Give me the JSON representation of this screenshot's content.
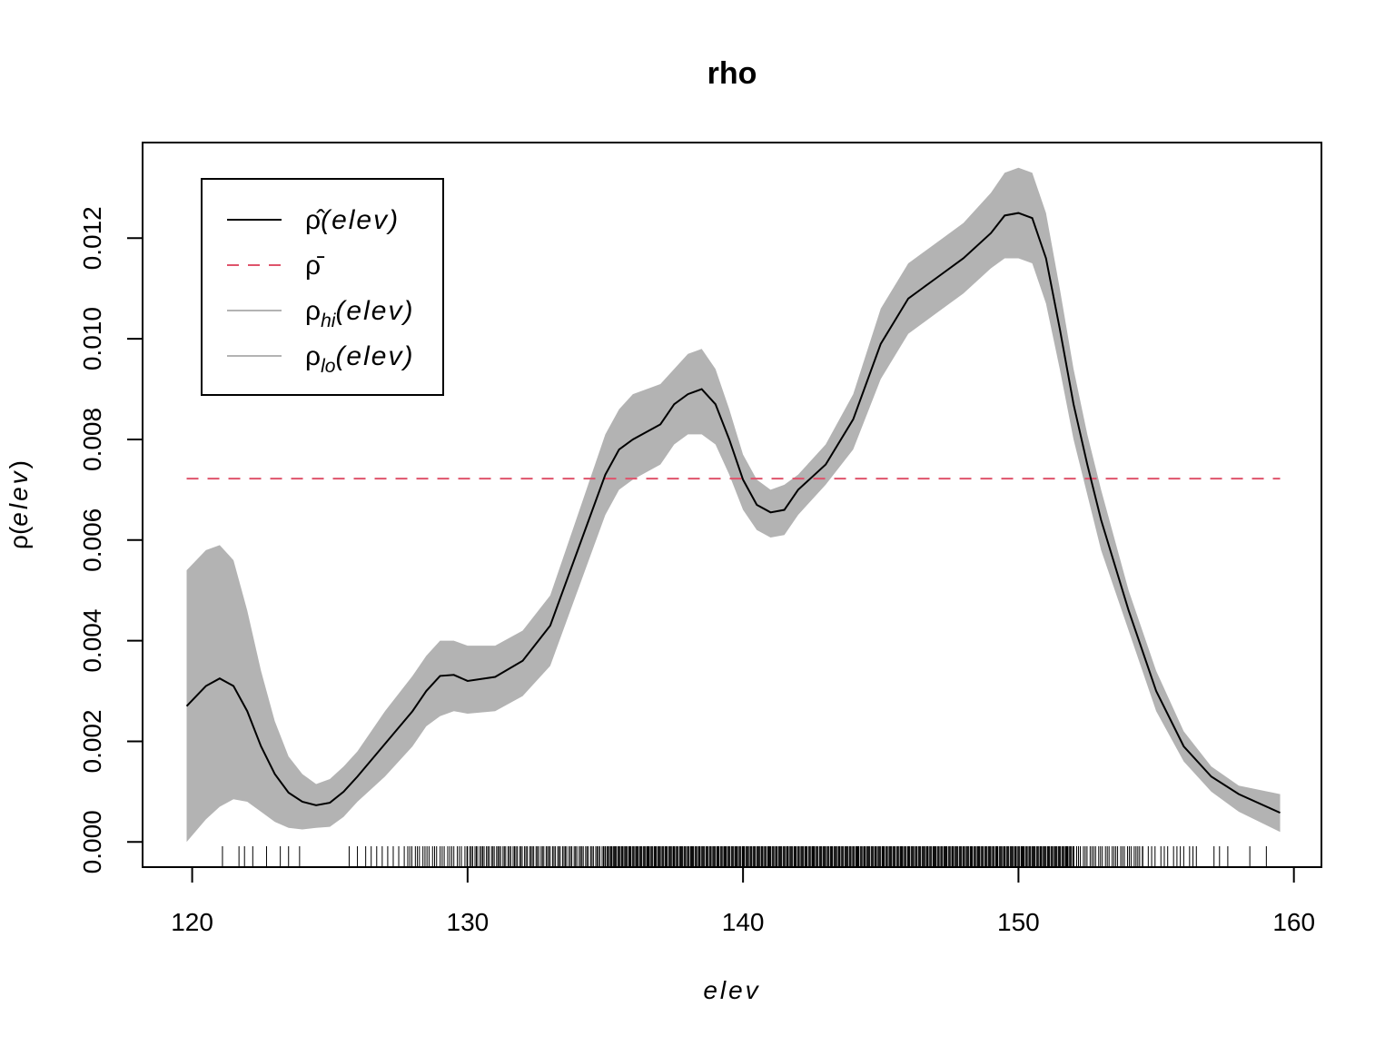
{
  "chart_data": {
    "type": "line",
    "title": "rho",
    "xlabel": "elev",
    "ylabel": "ρ(elev)",
    "xlim": [
      118.2,
      161
    ],
    "ylim": [
      -0.0005,
      0.0139
    ],
    "x_ticks": [
      120,
      130,
      140,
      150,
      160
    ],
    "x_tick_labels": [
      "120",
      "130",
      "140",
      "150",
      "160"
    ],
    "y_ticks": [
      0,
      0.002,
      0.004,
      0.006,
      0.008,
      0.01,
      0.012
    ],
    "y_tick_labels": [
      "0.000",
      "0.002",
      "0.004",
      "0.006",
      "0.008",
      "0.010",
      "0.012"
    ],
    "legend": {
      "position": "top-left",
      "entries": [
        {
          "name": "ρ̂(elev)",
          "base": "ρ̂",
          "sub": "",
          "arg": "(elev)",
          "color": "#000000",
          "dash": "solid"
        },
        {
          "name": "ρ̄",
          "base": "ρ̄",
          "sub": "",
          "arg": "",
          "color": "#DF536B",
          "dash": "dashed"
        },
        {
          "name": "ρhi(elev)",
          "base": "ρ",
          "sub": "hi",
          "arg": "(elev)",
          "color": "#B3B3B3",
          "dash": "solid"
        },
        {
          "name": "ρlo(elev)",
          "base": "ρ",
          "sub": "lo",
          "arg": "(elev)",
          "color": "#B3B3B3",
          "dash": "solid"
        }
      ]
    },
    "series": [
      {
        "name": "ρ̂(elev)",
        "color": "#000000",
        "x": [
          119.8,
          120.5,
          121.0,
          121.5,
          122.0,
          122.5,
          123.0,
          123.5,
          124.0,
          124.5,
          125.0,
          125.5,
          126.0,
          127.0,
          128.0,
          128.5,
          129.0,
          129.5,
          130.0,
          131.0,
          132.0,
          133.0,
          134.0,
          135.0,
          135.5,
          136.0,
          137.0,
          137.5,
          138.0,
          138.5,
          139.0,
          139.5,
          140.0,
          140.5,
          141.0,
          141.5,
          142.0,
          143.0,
          144.0,
          145.0,
          146.0,
          147.0,
          148.0,
          149.0,
          149.5,
          150.0,
          150.5,
          151.0,
          151.5,
          152.0,
          152.5,
          153.0,
          154.0,
          155.0,
          156.0,
          157.0,
          158.0,
          159.5
        ],
        "y": [
          0.0027,
          0.0031,
          0.00325,
          0.0031,
          0.0026,
          0.0019,
          0.00135,
          0.00098,
          0.0008,
          0.00073,
          0.00078,
          0.001,
          0.0013,
          0.00195,
          0.0026,
          0.003,
          0.0033,
          0.00332,
          0.0032,
          0.00328,
          0.0036,
          0.0043,
          0.0058,
          0.0073,
          0.0078,
          0.008,
          0.0083,
          0.0087,
          0.0089,
          0.009,
          0.0087,
          0.008,
          0.0072,
          0.0067,
          0.00655,
          0.0066,
          0.007,
          0.0075,
          0.0084,
          0.0099,
          0.0108,
          0.0112,
          0.0116,
          0.0121,
          0.01245,
          0.0125,
          0.0124,
          0.0116,
          0.0102,
          0.0087,
          0.0075,
          0.0064,
          0.0046,
          0.003,
          0.0019,
          0.0013,
          0.00095,
          0.00058
        ]
      },
      {
        "name": "ρ̄",
        "color": "#DF536B",
        "x": [
          119.8,
          159.5
        ],
        "y": [
          0.00722,
          0.00722
        ]
      },
      {
        "name": "ρhi(elev)",
        "color": "#B3B3B3",
        "x": [
          119.8,
          120.5,
          121.0,
          121.5,
          122.0,
          122.5,
          123.0,
          123.5,
          124.0,
          124.5,
          125.0,
          125.5,
          126.0,
          127.0,
          128.0,
          128.5,
          129.0,
          129.5,
          130.0,
          131.0,
          132.0,
          133.0,
          134.0,
          135.0,
          135.5,
          136.0,
          137.0,
          137.5,
          138.0,
          138.5,
          139.0,
          139.5,
          140.0,
          140.5,
          141.0,
          141.5,
          142.0,
          143.0,
          144.0,
          145.0,
          146.0,
          147.0,
          148.0,
          149.0,
          149.5,
          150.0,
          150.5,
          151.0,
          151.5,
          152.0,
          152.5,
          153.0,
          154.0,
          155.0,
          156.0,
          157.0,
          158.0,
          159.5
        ],
        "y": [
          0.0054,
          0.0058,
          0.0059,
          0.0056,
          0.0046,
          0.0034,
          0.0024,
          0.0017,
          0.00135,
          0.00115,
          0.00125,
          0.0015,
          0.0018,
          0.0026,
          0.0033,
          0.0037,
          0.004,
          0.004,
          0.0039,
          0.0039,
          0.0042,
          0.0049,
          0.0065,
          0.0081,
          0.0086,
          0.0089,
          0.0091,
          0.0094,
          0.0097,
          0.0098,
          0.0094,
          0.0086,
          0.0077,
          0.0072,
          0.007,
          0.0071,
          0.0073,
          0.0079,
          0.0089,
          0.0106,
          0.0115,
          0.0119,
          0.0123,
          0.0129,
          0.0133,
          0.0134,
          0.0133,
          0.0125,
          0.011,
          0.0094,
          0.0081,
          0.007,
          0.005,
          0.0034,
          0.0022,
          0.0015,
          0.00112,
          0.00095
        ]
      },
      {
        "name": "ρlo(elev)",
        "color": "#B3B3B3",
        "x": [
          119.8,
          120.5,
          121.0,
          121.5,
          122.0,
          122.5,
          123.0,
          123.5,
          124.0,
          124.5,
          125.0,
          125.5,
          126.0,
          127.0,
          128.0,
          128.5,
          129.0,
          129.5,
          130.0,
          131.0,
          132.0,
          133.0,
          134.0,
          135.0,
          135.5,
          136.0,
          137.0,
          137.5,
          138.0,
          138.5,
          139.0,
          139.5,
          140.0,
          140.5,
          141.0,
          141.5,
          142.0,
          143.0,
          144.0,
          145.0,
          146.0,
          147.0,
          148.0,
          149.0,
          149.5,
          150.0,
          150.5,
          151.0,
          151.5,
          152.0,
          152.5,
          153.0,
          154.0,
          155.0,
          156.0,
          157.0,
          158.0,
          159.5
        ],
        "y": [
          0.0,
          0.00045,
          0.0007,
          0.00085,
          0.0008,
          0.0006,
          0.0004,
          0.00028,
          0.00025,
          0.00028,
          0.0003,
          0.0005,
          0.0008,
          0.0013,
          0.0019,
          0.0023,
          0.0025,
          0.0026,
          0.00255,
          0.0026,
          0.0029,
          0.0035,
          0.005,
          0.0065,
          0.007,
          0.0072,
          0.0075,
          0.0079,
          0.0081,
          0.0081,
          0.0079,
          0.0073,
          0.0066,
          0.0062,
          0.00605,
          0.0061,
          0.0065,
          0.0071,
          0.0078,
          0.0092,
          0.0101,
          0.0105,
          0.0109,
          0.0114,
          0.0116,
          0.0116,
          0.0115,
          0.0107,
          0.0094,
          0.008,
          0.0069,
          0.0058,
          0.0042,
          0.0026,
          0.0016,
          0.001,
          0.0006,
          0.0002
        ]
      }
    ],
    "rug": {
      "color": "#000000",
      "sparse": [
        121.1,
        121.7,
        121.9,
        122.2,
        122.7,
        123.2,
        123.5,
        123.9,
        125.7,
        126.0,
        126.3,
        126.5,
        126.7,
        126.9,
        127.1,
        127.3,
        127.5
      ],
      "dense_ranges": [
        [
          127.7,
          130.0,
          0.09
        ],
        [
          130.0,
          135.0,
          0.06
        ],
        [
          135.0,
          152.0,
          0.04
        ],
        [
          152.0,
          154.5,
          0.08
        ],
        [
          154.5,
          156.6,
          0.15
        ]
      ],
      "tail": [
        157.1,
        157.3,
        157.6,
        158.4,
        159.0
      ]
    }
  }
}
